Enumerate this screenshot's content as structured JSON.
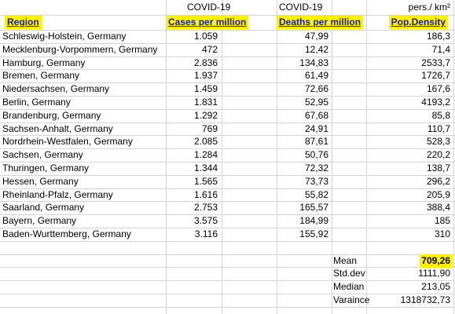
{
  "header": {
    "group": [
      "COVID-19",
      "COVID-19",
      "pers./ km²"
    ],
    "columns": [
      "Region",
      "Cases per million",
      "Deaths per million",
      "Pop.Density"
    ]
  },
  "table": {
    "rows": [
      [
        "Schleswig-Holstein, Germany",
        "1.059",
        "47,99",
        "186,3"
      ],
      [
        "Mecklenburg-Vorpommern, Germany",
        "472",
        "12,42",
        "71,4"
      ],
      [
        "Hamburg, Germany",
        "2.836",
        "134,83",
        "2533,7"
      ],
      [
        "Bremen, Germany",
        "1.937",
        "61,49",
        "1726,7"
      ],
      [
        "Niedersachsen, Germany",
        "1.459",
        "72,66",
        "167,6"
      ],
      [
        "Berlin, Germany",
        "1.831",
        "52,95",
        "4193,2"
      ],
      [
        "Brandenburg, Germany",
        "1.292",
        "67,68",
        "85,8"
      ],
      [
        "Sachsen-Anhalt, Germany",
        "769",
        "24,91",
        "110,7"
      ],
      [
        "Nordrhein-Westfalen, Germany",
        "2.085",
        "87,61",
        "528,3"
      ],
      [
        "Sachsen, Germany",
        "1.284",
        "50,76",
        "220,2"
      ],
      [
        "Thuringen, Germany",
        "1.344",
        "72,32",
        "138,7"
      ],
      [
        "Hessen, Germany",
        "1.565",
        "73,73",
        "296,2"
      ],
      [
        "Rheinland-Pfalz, Germany",
        "1.616",
        "55,82",
        "205,9"
      ],
      [
        "Saarland, Germany",
        "2.753",
        "165,57",
        "388,4"
      ],
      [
        "Bayern, Germany",
        "3.575",
        "184,99",
        "185"
      ],
      [
        "Baden-Wurttemberg, Germany",
        "3.116",
        "155,92",
        "310"
      ]
    ]
  },
  "stats": [
    {
      "label": "Mean",
      "value": "709,26"
    },
    {
      "label": "Std.dev",
      "value": "1111,90"
    },
    {
      "label": "Median",
      "value": "213,05"
    },
    {
      "label": "Varaince",
      "value": "1318732,73"
    }
  ]
}
